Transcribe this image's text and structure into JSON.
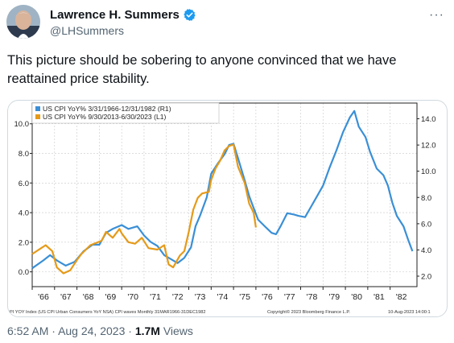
{
  "tweet": {
    "author": {
      "display_name": "Lawrence H. Summers",
      "handle": "@LHSummers",
      "verified": true,
      "verified_color": "#1d9bf0"
    },
    "more_glyph": "···",
    "text": "This picture should be sobering to anyone convinced that we have reattained price stability.",
    "footer": {
      "time": "6:52 AM",
      "separator": "·",
      "date": "Aug 24, 2023",
      "views_count": "1.7M",
      "views_label": "Views"
    }
  },
  "chart_data": {
    "type": "line",
    "legend_placement": "top-left",
    "colors": {
      "series_1": "#3a8fd6",
      "series_2": "#e59a19",
      "axis": "#222222",
      "grid": "#c8c8c8"
    },
    "legend": [
      "US CPI YoY% 3/31/1966-12/31/1982 (R1)",
      "US CPI YoY% 9/30/2013-6/30/2023 (L1)"
    ],
    "x_ticks": [
      "'66",
      "'67",
      "'68",
      "'69",
      "'70",
      "'71",
      "'72",
      "'73",
      "'74",
      "'75",
      "'76",
      "'77",
      "'78",
      "'79",
      "'80",
      "'81",
      "'82"
    ],
    "x_range": [
      1966.0,
      1983.2
    ],
    "left_axis": {
      "ticks": [
        "0.0",
        "2.0",
        "4.0",
        "6.0",
        "8.0",
        "10.0"
      ],
      "ylim": [
        -1.0,
        11.4
      ]
    },
    "right_axis": {
      "ticks": [
        "2.0",
        "4.0",
        "6.0",
        "8.0",
        "10.0",
        "12.0",
        "14.0"
      ],
      "ylim": [
        1.2,
        15.2
      ]
    },
    "source_left": "PI YOY Index (US CPI Urban Consumers YoY NSA) CPI waves  Monthly 31MAR1966-31DEC1982",
    "source_mid": "Copyright© 2023 Bloomberg Finance L.P.",
    "source_right": "10-Aug-2023 14:00:1",
    "series": [
      {
        "name": "US CPI YoY% 3/31/1966-12/31/1982 (R1)",
        "axis": "right",
        "points": [
          [
            1966.0,
            2.6
          ],
          [
            1966.5,
            3.2
          ],
          [
            1966.8,
            3.6
          ],
          [
            1967.1,
            3.2
          ],
          [
            1967.5,
            2.8
          ],
          [
            1967.9,
            3.1
          ],
          [
            1968.3,
            3.9
          ],
          [
            1968.7,
            4.4
          ],
          [
            1969.0,
            4.4
          ],
          [
            1969.3,
            5.3
          ],
          [
            1969.6,
            5.6
          ],
          [
            1970.0,
            5.9
          ],
          [
            1970.3,
            5.6
          ],
          [
            1970.7,
            5.8
          ],
          [
            1971.0,
            5.1
          ],
          [
            1971.3,
            4.6
          ],
          [
            1971.6,
            4.3
          ],
          [
            1971.9,
            3.6
          ],
          [
            1972.2,
            3.3
          ],
          [
            1972.5,
            3.0
          ],
          [
            1972.8,
            3.4
          ],
          [
            1973.1,
            4.2
          ],
          [
            1973.3,
            5.8
          ],
          [
            1973.5,
            6.6
          ],
          [
            1973.8,
            8.0
          ],
          [
            1974.0,
            9.8
          ],
          [
            1974.3,
            10.6
          ],
          [
            1974.6,
            11.3
          ],
          [
            1974.8,
            12.0
          ],
          [
            1975.0,
            12.1
          ],
          [
            1975.2,
            11.0
          ],
          [
            1975.5,
            9.3
          ],
          [
            1975.7,
            8.1
          ],
          [
            1975.9,
            7.2
          ],
          [
            1976.1,
            6.3
          ],
          [
            1976.4,
            5.8
          ],
          [
            1976.7,
            5.3
          ],
          [
            1976.9,
            5.2
          ],
          [
            1977.1,
            5.8
          ],
          [
            1977.4,
            6.8
          ],
          [
            1977.7,
            6.7
          ],
          [
            1977.9,
            6.6
          ],
          [
            1978.2,
            6.5
          ],
          [
            1978.5,
            7.4
          ],
          [
            1978.8,
            8.3
          ],
          [
            1979.0,
            8.9
          ],
          [
            1979.3,
            10.3
          ],
          [
            1979.6,
            11.6
          ],
          [
            1979.9,
            13.0
          ],
          [
            1980.2,
            14.1
          ],
          [
            1980.4,
            14.6
          ],
          [
            1980.6,
            13.4
          ],
          [
            1980.9,
            12.6
          ],
          [
            1981.1,
            11.5
          ],
          [
            1981.4,
            10.2
          ],
          [
            1981.7,
            9.7
          ],
          [
            1981.9,
            8.9
          ],
          [
            1982.1,
            7.6
          ],
          [
            1982.3,
            6.6
          ],
          [
            1982.6,
            5.8
          ],
          [
            1982.8,
            4.8
          ],
          [
            1983.0,
            3.9
          ]
        ]
      },
      {
        "name": "US CPI YoY% 9/30/2013-6/30/2023 (L1)",
        "axis": "left",
        "points": [
          [
            1966.0,
            1.2
          ],
          [
            1966.4,
            1.6
          ],
          [
            1966.6,
            1.8
          ],
          [
            1966.9,
            1.4
          ],
          [
            1967.1,
            0.3
          ],
          [
            1967.4,
            -0.1
          ],
          [
            1967.7,
            0.1
          ],
          [
            1968.0,
            0.8
          ],
          [
            1968.2,
            1.2
          ],
          [
            1968.6,
            1.8
          ],
          [
            1969.1,
            2.1
          ],
          [
            1969.3,
            2.7
          ],
          [
            1969.6,
            2.3
          ],
          [
            1969.9,
            2.9
          ],
          [
            1970.0,
            2.6
          ],
          [
            1970.3,
            2.0
          ],
          [
            1970.6,
            1.9
          ],
          [
            1970.9,
            2.3
          ],
          [
            1971.2,
            1.6
          ],
          [
            1971.6,
            1.5
          ],
          [
            1971.9,
            1.8
          ],
          [
            1972.1,
            0.5
          ],
          [
            1972.3,
            0.3
          ],
          [
            1972.6,
            1.1
          ],
          [
            1972.8,
            1.4
          ],
          [
            1973.0,
            2.7
          ],
          [
            1973.2,
            4.2
          ],
          [
            1973.4,
            5.0
          ],
          [
            1973.6,
            5.3
          ],
          [
            1973.9,
            5.4
          ],
          [
            1974.0,
            6.2
          ],
          [
            1974.2,
            7.0
          ],
          [
            1974.4,
            7.5
          ],
          [
            1974.6,
            8.2
          ],
          [
            1974.8,
            8.5
          ],
          [
            1975.0,
            8.6
          ],
          [
            1975.2,
            7.1
          ],
          [
            1975.5,
            6.0
          ],
          [
            1975.7,
            4.6
          ],
          [
            1975.9,
            4.0
          ],
          [
            1976.0,
            3.0
          ]
        ]
      }
    ]
  }
}
